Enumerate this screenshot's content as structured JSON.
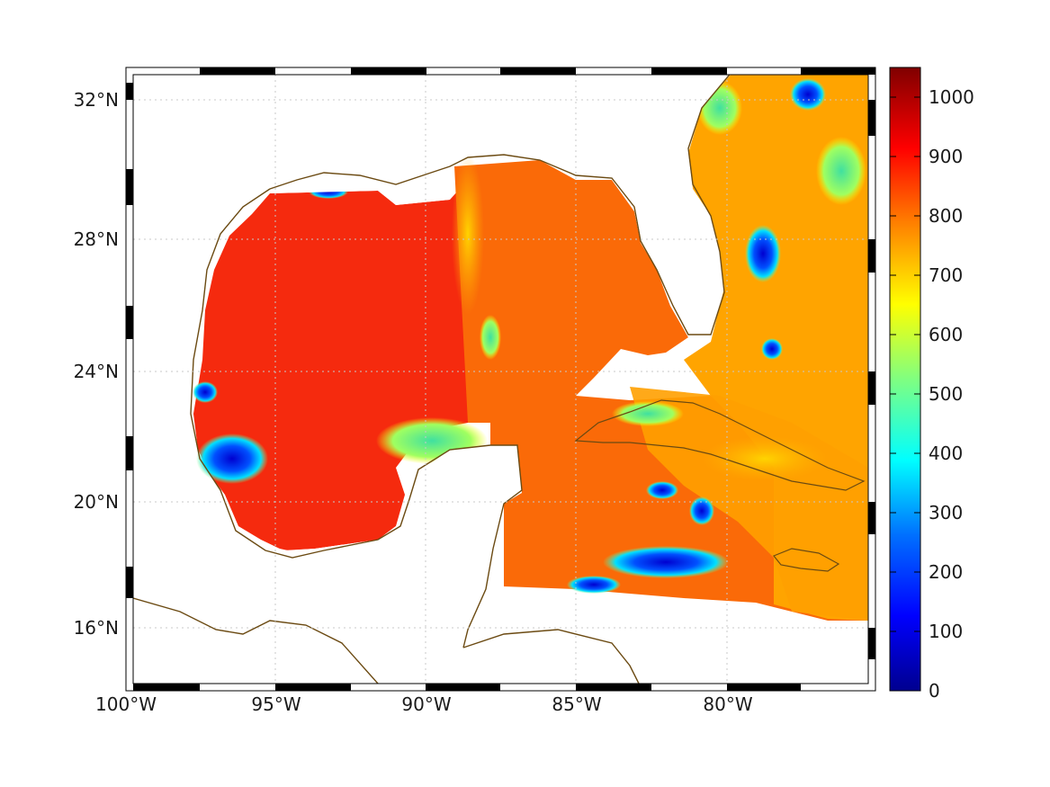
{
  "map": {
    "lat_labels": [
      "32°N",
      "28°N",
      "24°N",
      "20°N",
      "16°N"
    ],
    "lon_labels": [
      "100°W",
      "95°W",
      "90°W",
      "85°W",
      "80°W"
    ],
    "coastline_color": "#6b4a12",
    "gridline_color": "#c8c8c8",
    "frame_colors": [
      "#000000",
      "#ffffff"
    ]
  },
  "colorbar": {
    "labels": [
      "1000",
      "900",
      "800",
      "700",
      "600",
      "500",
      "400",
      "300",
      "200",
      "100",
      "0"
    ],
    "range": [
      0,
      1050
    ],
    "colormap": "jet",
    "colors": [
      "#00008f",
      "#0000ff",
      "#0080ff",
      "#00ffff",
      "#80ff80",
      "#ffff00",
      "#ff8000",
      "#ff0000",
      "#800000"
    ]
  }
}
